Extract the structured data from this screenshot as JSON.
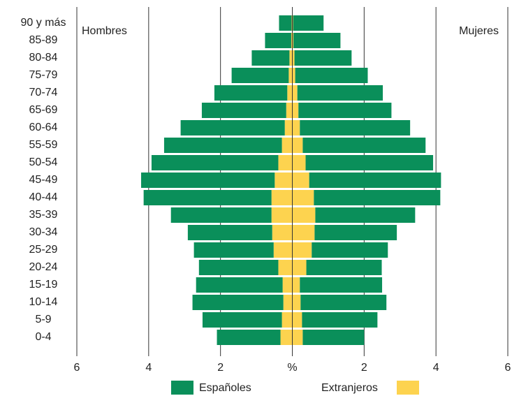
{
  "chart_data": {
    "type": "pyramid",
    "left_label": "Hombres",
    "right_label": "Mujeres",
    "categories": [
      "90 y más",
      "85-89",
      "80-84",
      "75-79",
      "70-74",
      "65-69",
      "60-64",
      "55-59",
      "50-54",
      "45-49",
      "40-44",
      "35-39",
      "30-34",
      "25-29",
      "20-24",
      "15-19",
      "10-14",
      "5-9",
      "0-4"
    ],
    "series": [
      {
        "name": "Españoles",
        "color": "#0a8f5a",
        "left": [
          0.35,
          0.73,
          1.05,
          1.59,
          2.03,
          2.35,
          2.9,
          3.28,
          3.53,
          3.72,
          3.56,
          2.8,
          2.35,
          2.22,
          2.21,
          2.41,
          2.53,
          2.21,
          1.77
        ],
        "right": [
          0.85,
          1.31,
          1.59,
          2.02,
          2.38,
          2.59,
          3.07,
          3.42,
          3.55,
          3.67,
          3.52,
          2.78,
          2.29,
          2.12,
          2.1,
          2.29,
          2.39,
          2.1,
          1.71
        ]
      },
      {
        "name": "Extranjeros",
        "color": "#fdd34f",
        "left": [
          0.02,
          0.03,
          0.08,
          0.1,
          0.14,
          0.17,
          0.21,
          0.29,
          0.39,
          0.49,
          0.58,
          0.58,
          0.56,
          0.52,
          0.39,
          0.27,
          0.25,
          0.29,
          0.33
        ],
        "right": [
          0.02,
          0.03,
          0.06,
          0.08,
          0.14,
          0.17,
          0.21,
          0.29,
          0.37,
          0.47,
          0.6,
          0.64,
          0.62,
          0.54,
          0.39,
          0.21,
          0.23,
          0.27,
          0.29
        ]
      }
    ],
    "xlim": [
      -6,
      6
    ],
    "xticks": [
      {
        "value": -6,
        "label": "6"
      },
      {
        "value": -4,
        "label": "4"
      },
      {
        "value": -2,
        "label": "2"
      },
      {
        "value": 0,
        "label": "%"
      },
      2,
      4,
      6
    ],
    "grid": true
  }
}
